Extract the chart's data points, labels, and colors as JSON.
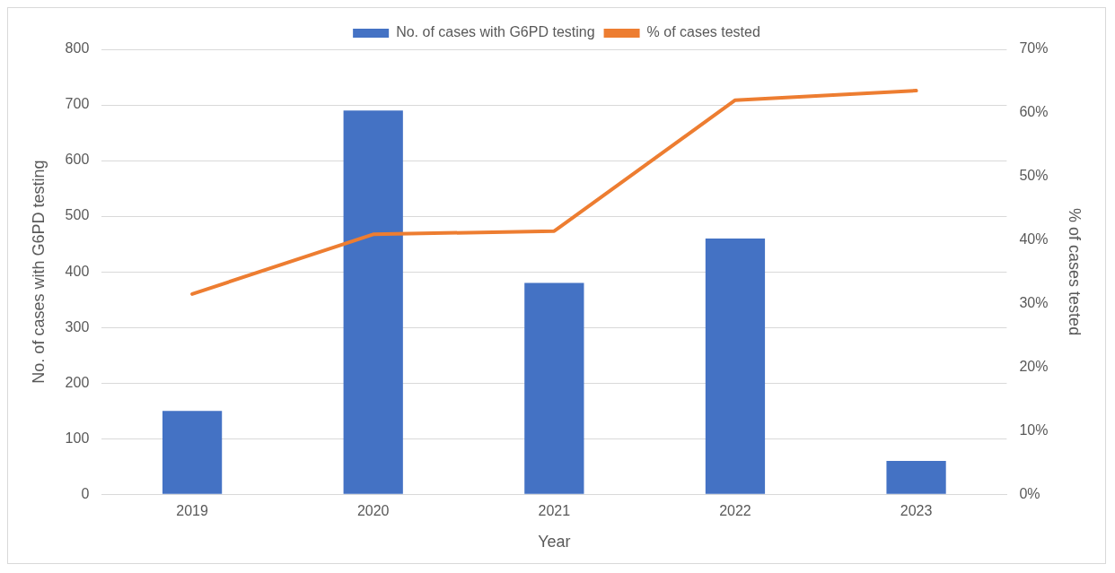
{
  "chart_data": {
    "type": "bar",
    "xlabel": "Year",
    "ylabel": "No. of cases with G6PD testing",
    "y2label": "% of cases tested",
    "categories": [
      "2019",
      "2020",
      "2021",
      "2022",
      "2023"
    ],
    "series": [
      {
        "name": "No. of cases with G6PD testing",
        "color": "#4472c4",
        "values": [
          150,
          690,
          380,
          460,
          60
        ]
      },
      {
        "name": "% of cases tested",
        "type": "line",
        "axis": "y2",
        "color": "#ed7d31",
        "marker": "none",
        "values": [
          31.5,
          40.9,
          41.4,
          62.0,
          63.5
        ]
      }
    ],
    "ylim": [
      0,
      800
    ],
    "yticks": [
      0,
      100,
      200,
      300,
      400,
      500,
      600,
      700,
      800
    ],
    "y2lim": [
      0,
      70
    ],
    "y2ticks": [
      {
        "value": 0,
        "label": "0%"
      },
      {
        "value": 10,
        "label": "10%"
      },
      {
        "value": 20,
        "label": "20%"
      },
      {
        "value": 30,
        "label": "30%"
      },
      {
        "value": 40,
        "label": "40%"
      },
      {
        "value": 50,
        "label": "50%"
      },
      {
        "value": 60,
        "label": "60%"
      },
      {
        "value": 70,
        "label": "70%"
      }
    ],
    "grid": "y",
    "legend": "top"
  }
}
